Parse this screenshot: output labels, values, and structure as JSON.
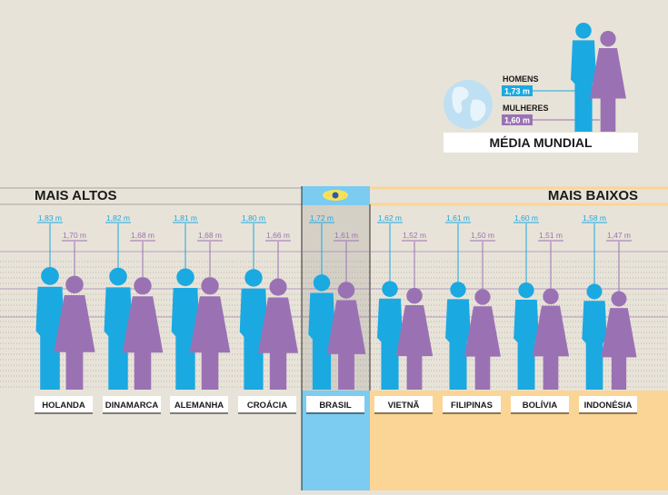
{
  "world": {
    "title": "MÉDIA MUNDIAL",
    "men_label": "HOMENS",
    "men_value": "1,73 m",
    "women_label": "MULHERES",
    "women_value": "1,60 m"
  },
  "sections": {
    "tallest": "MAIS ALTOS",
    "shortest": "MAIS BAIXOS"
  },
  "colors": {
    "men": "#1ba9e1",
    "women": "#9a72b4",
    "background": "#e8e3d8",
    "brazil_band": "#7ccbf0",
    "short_band": "#fbd596"
  },
  "chart_data": {
    "type": "bar",
    "title": "",
    "unit": "m",
    "categories": [
      "HOLANDA",
      "DINAMARCA",
      "ALEMANHA",
      "CROÁCIA",
      "BRASIL",
      "VIETNÃ",
      "FILIPINAS",
      "BOLÍVIA",
      "INDONÉSIA"
    ],
    "series": [
      {
        "name": "HOMENS",
        "values": [
          1.83,
          1.82,
          1.81,
          1.8,
          1.72,
          1.62,
          1.61,
          1.6,
          1.58
        ],
        "labels": [
          "1,83 m",
          "1,82 m",
          "1,81 m",
          "1,80 m",
          "1,72 m",
          "1,62 m",
          "1,61 m",
          "1,60 m",
          "1,58 m"
        ]
      },
      {
        "name": "MULHERES",
        "values": [
          1.7,
          1.68,
          1.68,
          1.66,
          1.61,
          1.52,
          1.5,
          1.51,
          1.47
        ],
        "labels": [
          "1,70 m",
          "1,68 m",
          "1,68 m",
          "1,66 m",
          "1,61 m",
          "1,52 m",
          "1,50 m",
          "1,51 m",
          "1,47 m"
        ]
      }
    ],
    "world_average": {
      "men": 1.73,
      "women": 1.6
    }
  }
}
